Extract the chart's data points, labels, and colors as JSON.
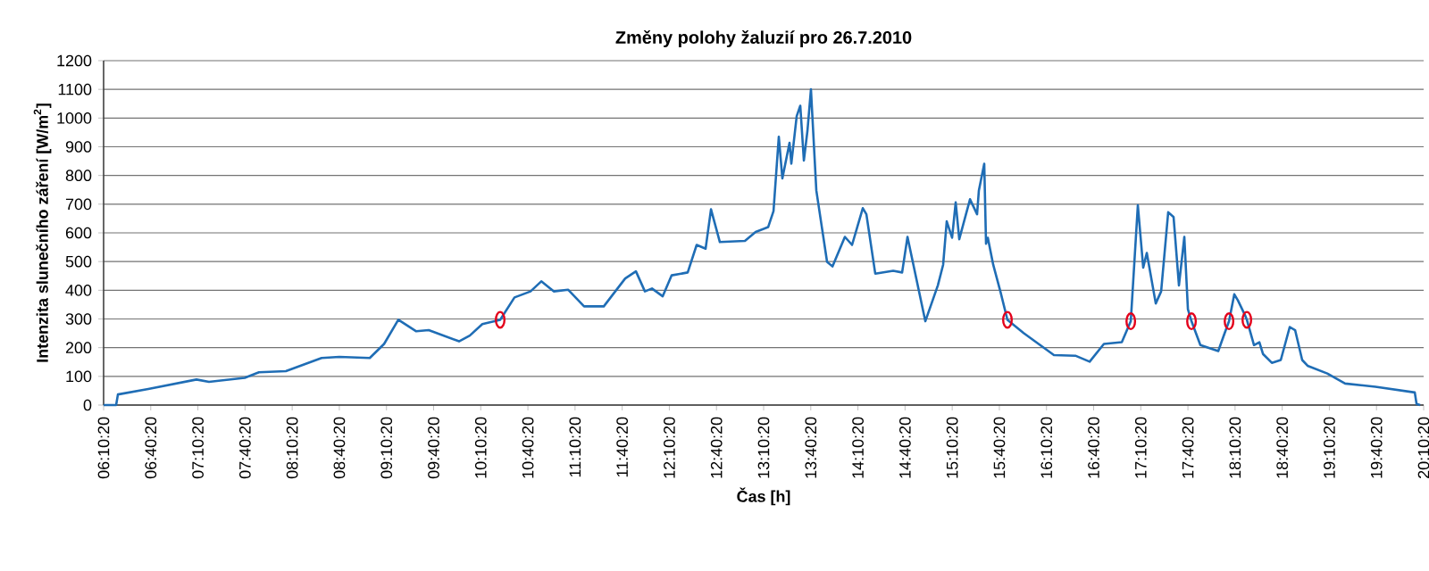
{
  "chart_data": {
    "type": "line",
    "title": "Změny polohy žaluzií pro 26.7.2010",
    "xlabel": "Čas [h]",
    "ylabel": "Intenzita slunečního záření [W/m$^{2}$]",
    "xlim": [
      6.1722,
      20.1722
    ],
    "ylim": [
      0,
      1200
    ],
    "xticks": [
      {
        "value": 6.1722,
        "label": "06:10:20"
      },
      {
        "value": 6.6722,
        "label": "06:40:20"
      },
      {
        "value": 7.1722,
        "label": "07:10:20"
      },
      {
        "value": 7.6722,
        "label": "07:40:20"
      },
      {
        "value": 8.1722,
        "label": "08:10:20"
      },
      {
        "value": 8.6722,
        "label": "08:40:20"
      },
      {
        "value": 9.1722,
        "label": "09:10:20"
      },
      {
        "value": 9.6722,
        "label": "09:40:20"
      },
      {
        "value": 10.1722,
        "label": "10:10:20"
      },
      {
        "value": 10.6722,
        "label": "10:40:20"
      },
      {
        "value": 11.1722,
        "label": "11:10:20"
      },
      {
        "value": 11.6722,
        "label": "11:40:20"
      },
      {
        "value": 12.1722,
        "label": "12:10:20"
      },
      {
        "value": 12.6722,
        "label": "12:40:20"
      },
      {
        "value": 13.1722,
        "label": "13:10:20"
      },
      {
        "value": 13.6722,
        "label": "13:40:20"
      },
      {
        "value": 14.1722,
        "label": "14:10:20"
      },
      {
        "value": 14.6722,
        "label": "14:40:20"
      },
      {
        "value": 15.1722,
        "label": "15:10:20"
      },
      {
        "value": 15.6722,
        "label": "15:40:20"
      },
      {
        "value": 16.1722,
        "label": "16:10:20"
      },
      {
        "value": 16.6722,
        "label": "16:40:20"
      },
      {
        "value": 17.1722,
        "label": "17:10:20"
      },
      {
        "value": 17.6722,
        "label": "17:40:20"
      },
      {
        "value": 18.1722,
        "label": "18:10:20"
      },
      {
        "value": 18.6722,
        "label": "18:40:20"
      },
      {
        "value": 19.1722,
        "label": "19:10:20"
      },
      {
        "value": 19.6722,
        "label": "19:40:20"
      },
      {
        "value": 20.1722,
        "label": "20:10:20"
      }
    ],
    "yticks": [
      0,
      100,
      200,
      300,
      400,
      500,
      600,
      700,
      800,
      900,
      1000,
      1100,
      1200
    ],
    "grid": "y",
    "series": [
      {
        "color": "#1f6db5",
        "marker": "none",
        "line_style": "solid",
        "x": [
          6.1722,
          6.305,
          6.324,
          6.646,
          7.157,
          7.29,
          7.669,
          7.82,
          8.105,
          8.484,
          8.673,
          8.995,
          9.147,
          9.298,
          9.488,
          9.62,
          9.942,
          10.056,
          10.189,
          10.378,
          10.53,
          10.7,
          10.814,
          10.946,
          11.098,
          11.268,
          11.477,
          11.704,
          11.818,
          11.913,
          11.988,
          12.102,
          12.197,
          12.367,
          12.462,
          12.557,
          12.614,
          12.708,
          12.974,
          13.087,
          13.22,
          13.277,
          13.333,
          13.371,
          13.447,
          13.466,
          13.523,
          13.561,
          13.599,
          13.637,
          13.674,
          13.731,
          13.845,
          13.902,
          14.034,
          14.11,
          14.224,
          14.262,
          14.356,
          14.546,
          14.641,
          14.698,
          14.754,
          14.887,
          15.02,
          15.076,
          15.114,
          15.171,
          15.209,
          15.247,
          15.361,
          15.436,
          15.455,
          15.512,
          15.531,
          15.55,
          15.607,
          15.683,
          15.758,
          15.929,
          16.251,
          16.478,
          16.63,
          16.781,
          16.971,
          17.066,
          17.141,
          17.198,
          17.236,
          17.331,
          17.388,
          17.463,
          17.52,
          17.577,
          17.634,
          17.672,
          17.71,
          17.804,
          17.994,
          18.051,
          18.108,
          18.164,
          18.202,
          18.278,
          18.297,
          18.373,
          18.43,
          18.468,
          18.562,
          18.657,
          18.752,
          18.809,
          18.884,
          18.941,
          19.15,
          19.339,
          19.661,
          20.078,
          20.097,
          20.135
        ],
        "values": [
          0,
          0,
          37,
          56,
          89,
          81,
          95,
          114,
          118,
          164,
          168,
          164,
          213,
          297,
          257,
          261,
          222,
          242,
          282,
          297,
          375,
          396,
          431,
          396,
          402,
          344,
          344,
          441,
          466,
          396,
          406,
          379,
          452,
          462,
          558,
          545,
          682,
          568,
          572,
          603,
          620,
          676,
          935,
          790,
          914,
          841,
          1007,
          1043,
          852,
          956,
          1100,
          748,
          499,
          483,
          586,
          558,
          686,
          665,
          458,
          468,
          462,
          586,
          499,
          292,
          417,
          489,
          640,
          583,
          706,
          578,
          717,
          665,
          748,
          841,
          562,
          583,
          489,
          396,
          297,
          251,
          174,
          172,
          151,
          213,
          219,
          292,
          696,
          479,
          530,
          354,
          396,
          672,
          655,
          417,
          586,
          334,
          292,
          209,
          188,
          241,
          292,
          386,
          365,
          313,
          297,
          209,
          219,
          178,
          147,
          157,
          272,
          261,
          157,
          137,
          110,
          75,
          64,
          44,
          4,
          0
        ]
      },
      {
        "type": "scatter",
        "color": "#e3001b",
        "marker": "circle",
        "x": [
          10.378,
          15.758,
          17.066,
          17.71,
          18.108,
          18.297
        ],
        "values": [
          297,
          297,
          292,
          292,
          292,
          297
        ]
      }
    ]
  }
}
